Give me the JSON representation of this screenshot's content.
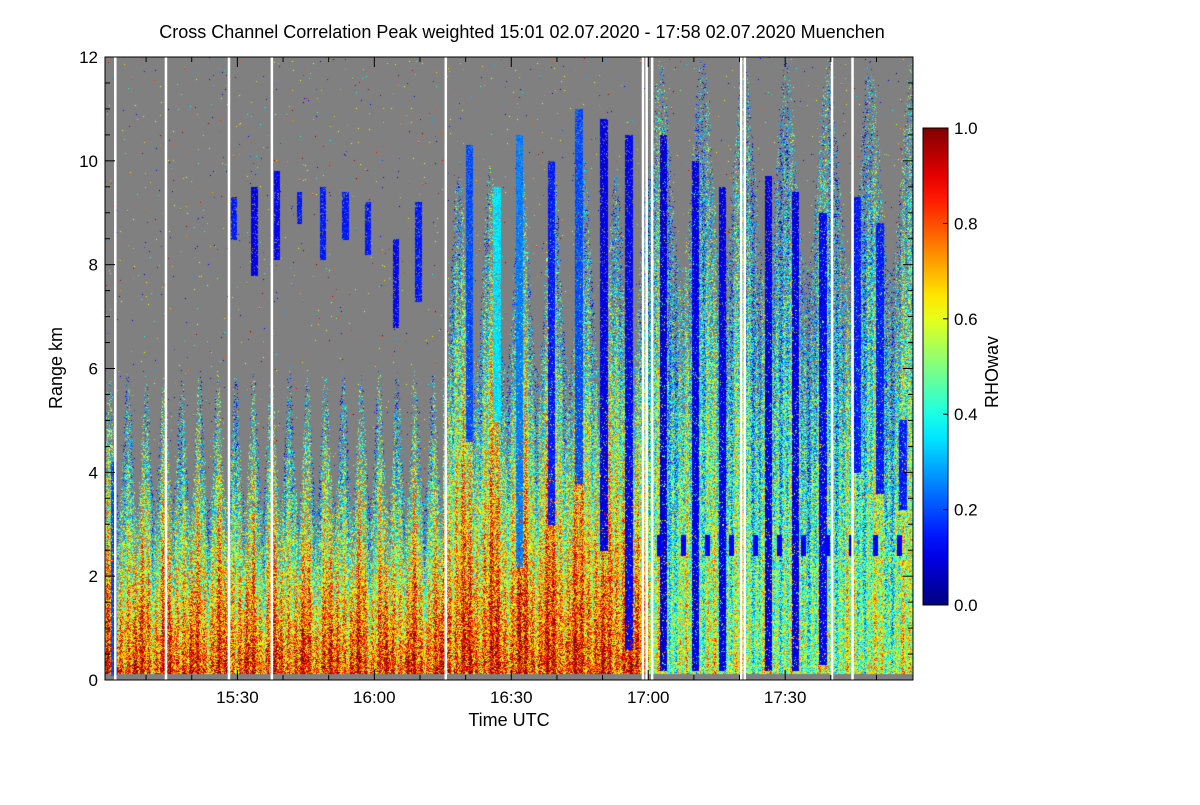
{
  "chart_data": {
    "type": "heatmap",
    "title": "Cross Channel Correlation Peak weighted   15:01 02.07.2020 - 17:58 02.07.2020 Muenchen",
    "xlabel": "Time UTC",
    "ylabel": "Range km",
    "x_range_minutes_since_15_00": [
      1,
      178
    ],
    "y_range_km": [
      0,
      12
    ],
    "x_ticks": [
      {
        "minutes": 30,
        "label": "15:30"
      },
      {
        "minutes": 60,
        "label": "16:00"
      },
      {
        "minutes": 90,
        "label": "16:30"
      },
      {
        "minutes": 120,
        "label": "17:00"
      },
      {
        "minutes": 150,
        "label": "17:30"
      }
    ],
    "y_ticks": [
      {
        "value": 0,
        "label": "0"
      },
      {
        "value": 2,
        "label": "2"
      },
      {
        "value": 4,
        "label": "4"
      },
      {
        "value": 6,
        "label": "6"
      },
      {
        "value": 8,
        "label": "8"
      },
      {
        "value": 10,
        "label": "10"
      },
      {
        "value": 12,
        "label": "12"
      }
    ],
    "colorbar": {
      "label": "RHOwav",
      "range": [
        0.0,
        1.0
      ],
      "ticks": [
        {
          "value": 0.0,
          "label": "0.0"
        },
        {
          "value": 0.2,
          "label": "0.2"
        },
        {
          "value": 0.4,
          "label": "0.4"
        },
        {
          "value": 0.6,
          "label": "0.6"
        },
        {
          "value": 0.8,
          "label": "0.8"
        },
        {
          "value": 1.0,
          "label": "1.0"
        }
      ],
      "colormap": "jet"
    },
    "no_signal_color": "#808080",
    "gap_color": "#ffffff",
    "data_gaps_minutes": [
      3.2,
      14.3,
      28.1,
      37.5,
      75.6,
      118.8,
      119.6,
      120.8,
      140.3,
      141.1,
      160.2,
      164.7
    ],
    "dark_layer_segments": [
      {
        "start_min": 2.4,
        "end_min": 3.0,
        "base_km": 0.1,
        "top_km": 4.2,
        "rho": 0.2
      },
      {
        "start_min": 28.5,
        "end_min": 29.2,
        "base_km": 8.5,
        "top_km": 9.3,
        "rho": 0.15
      },
      {
        "start_min": 33.0,
        "end_min": 33.8,
        "base_km": 7.8,
        "top_km": 9.5,
        "rho": 0.1
      },
      {
        "start_min": 38.0,
        "end_min": 38.7,
        "base_km": 8.1,
        "top_km": 9.8,
        "rho": 0.12
      },
      {
        "start_min": 43.0,
        "end_min": 43.6,
        "base_km": 8.8,
        "top_km": 9.4,
        "rho": 0.15
      },
      {
        "start_min": 48.0,
        "end_min": 48.7,
        "base_km": 8.1,
        "top_km": 9.5,
        "rho": 0.15
      },
      {
        "start_min": 53.0,
        "end_min": 53.7,
        "base_km": 8.5,
        "top_km": 9.4,
        "rho": 0.15
      },
      {
        "start_min": 58.0,
        "end_min": 58.7,
        "base_km": 8.2,
        "top_km": 9.2,
        "rho": 0.15
      },
      {
        "start_min": 64.0,
        "end_min": 64.7,
        "base_km": 6.8,
        "top_km": 8.5,
        "rho": 0.12
      },
      {
        "start_min": 69.0,
        "end_min": 69.7,
        "base_km": 7.3,
        "top_km": 9.2,
        "rho": 0.15
      },
      {
        "start_min": 80.0,
        "end_min": 81.0,
        "base_km": 4.6,
        "top_km": 10.3,
        "rho": 0.2
      },
      {
        "start_min": 86.0,
        "end_min": 87.0,
        "base_km": 5.0,
        "top_km": 9.5,
        "rho": 0.35
      },
      {
        "start_min": 91.0,
        "end_min": 92.0,
        "base_km": 2.2,
        "top_km": 10.5,
        "rho": 0.25
      },
      {
        "start_min": 98.0,
        "end_min": 99.0,
        "base_km": 3.0,
        "top_km": 10.0,
        "rho": 0.15
      },
      {
        "start_min": 104.0,
        "end_min": 105.0,
        "base_km": 3.8,
        "top_km": 11.0,
        "rho": 0.2
      },
      {
        "start_min": 109.5,
        "end_min": 110.5,
        "base_km": 2.5,
        "top_km": 10.8,
        "rho": 0.1
      },
      {
        "start_min": 115.0,
        "end_min": 116.0,
        "base_km": 0.6,
        "top_km": 10.5,
        "rho": 0.12
      },
      {
        "start_min": 122.5,
        "end_min": 123.4,
        "base_km": 0.2,
        "top_km": 10.5,
        "rho": 0.08
      },
      {
        "start_min": 129.5,
        "end_min": 130.4,
        "base_km": 0.2,
        "top_km": 10.0,
        "rho": 0.1
      },
      {
        "start_min": 135.5,
        "end_min": 136.4,
        "base_km": 0.2,
        "top_km": 9.5,
        "rho": 0.1
      },
      {
        "start_min": 145.5,
        "end_min": 146.4,
        "base_km": 0.2,
        "top_km": 9.7,
        "rho": 0.1
      },
      {
        "start_min": 151.5,
        "end_min": 152.4,
        "base_km": 0.2,
        "top_km": 9.4,
        "rho": 0.1
      },
      {
        "start_min": 157.5,
        "end_min": 158.4,
        "base_km": 0.3,
        "top_km": 9.0,
        "rho": 0.12
      },
      {
        "start_min": 165.0,
        "end_min": 166.0,
        "base_km": 4.0,
        "top_km": 9.3,
        "rho": 0.15
      },
      {
        "start_min": 170.0,
        "end_min": 171.0,
        "base_km": 3.6,
        "top_km": 8.8,
        "rho": 0.15
      },
      {
        "start_min": 175.0,
        "end_min": 176.0,
        "base_km": 3.3,
        "top_km": 5.0,
        "rho": 0.15
      }
    ],
    "low_layer_band_km": [
      2.4,
      2.8
    ]
  }
}
